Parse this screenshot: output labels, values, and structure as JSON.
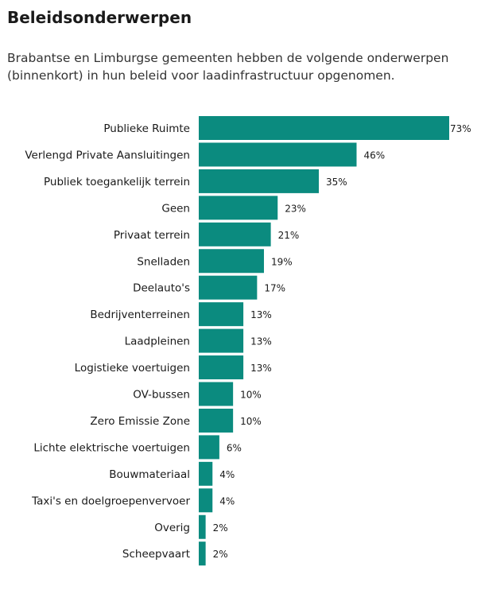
{
  "title": "Beleidsonderwerpen",
  "subtitle": "Brabantse en Limburgse gemeenten hebben de volgende onderwerpen (binnenkort) in hun beleid voor laadinfrastructuur opgenomen.",
  "colors": {
    "bar": "#0b8b7f"
  },
  "chart_data": {
    "type": "bar",
    "orientation": "horizontal",
    "title": "Beleidsonderwerpen",
    "xlabel": "",
    "ylabel": "",
    "unit": "%",
    "grid": false,
    "xlim": [
      0,
      73
    ],
    "categories": [
      "Publieke Ruimte",
      "Verlengd Private Aansluitingen",
      "Publiek toegankelijk terrein",
      "Geen",
      "Privaat terrein",
      "Snelladen",
      "Deelauto's",
      "Bedrijventerreinen",
      "Laadpleinen",
      "Logistieke voertuigen",
      "OV-bussen",
      "Zero Emissie Zone",
      "Lichte elektrische voertuigen",
      "Bouwmateriaal",
      "Taxi's en doelgroepenvervoer",
      "Overig",
      "Scheepvaart"
    ],
    "values": [
      73,
      46,
      35,
      23,
      21,
      19,
      17,
      13,
      13,
      13,
      10,
      10,
      6,
      4,
      4,
      2,
      2
    ],
    "value_labels": [
      "73%",
      "46%",
      "35%",
      "23%",
      "21%",
      "19%",
      "17%",
      "13%",
      "13%",
      "13%",
      "10%",
      "10%",
      "6%",
      "4%",
      "4%",
      "2%",
      "2%"
    ]
  }
}
